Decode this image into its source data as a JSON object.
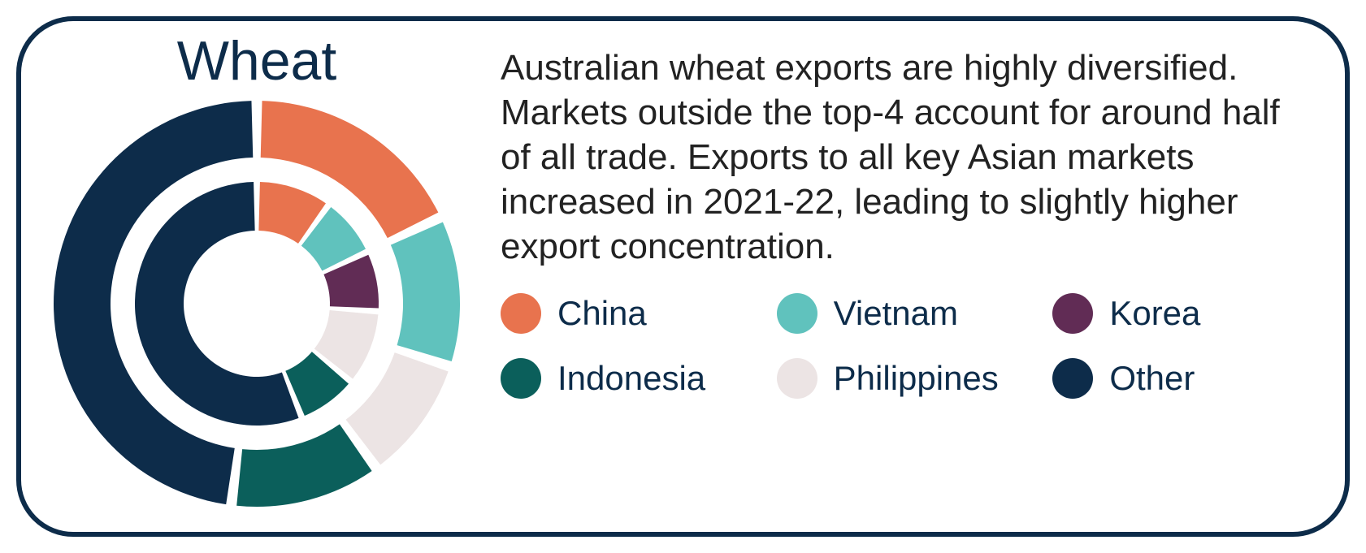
{
  "card": {
    "title": "Wheat",
    "description": "Australian wheat exports are highly diversified. Markets outside the top-4 account for around half of all trade. Exports to all key Asian markets increased in 2021-22, leading to slightly higher export concentration.",
    "border_color": "#0d2c4a",
    "border_width": 6,
    "border_radius": 70,
    "background_color": "#ffffff",
    "title_color": "#0d2c4a",
    "title_fontsize": 68,
    "desc_fontsize": 44,
    "desc_color": "#222222"
  },
  "chart": {
    "type": "nested-donut",
    "gap_color": "#ffffff",
    "gap_deg": 3,
    "rings": [
      {
        "name": "outer",
        "inner_radius": 180,
        "outer_radius": 250,
        "segments": [
          {
            "label": "China",
            "value": 18,
            "color": "#e8734e"
          },
          {
            "label": "Vietnam",
            "value": 12,
            "color": "#60c2bd"
          },
          {
            "label": "Philippines",
            "value": 10,
            "color": "#ece4e4"
          },
          {
            "label": "Indonesia",
            "value": 12,
            "color": "#0b5f5b"
          },
          {
            "label": "Other",
            "value": 48,
            "color": "#0d2c4a"
          }
        ]
      },
      {
        "name": "inner",
        "inner_radius": 90,
        "outer_radius": 150,
        "segments": [
          {
            "label": "China",
            "value": 10,
            "color": "#e8734e"
          },
          {
            "label": "Vietnam",
            "value": 8,
            "color": "#60c2bd"
          },
          {
            "label": "Korea",
            "value": 8,
            "color": "#612c55"
          },
          {
            "label": "Philippines",
            "value": 10,
            "color": "#ece4e4"
          },
          {
            "label": "Indonesia",
            "value": 8,
            "color": "#0b5f5b"
          },
          {
            "label": "Other",
            "value": 56,
            "color": "#0d2c4a"
          }
        ]
      }
    ]
  },
  "legend": {
    "label_fontsize": 42,
    "label_color": "#0d2c4a",
    "swatch_size": 50,
    "items": [
      {
        "label": "China",
        "color": "#e8734e"
      },
      {
        "label": "Vietnam",
        "color": "#60c2bd"
      },
      {
        "label": "Korea",
        "color": "#612c55"
      },
      {
        "label": "Indonesia",
        "color": "#0b5f5b"
      },
      {
        "label": "Philippines",
        "color": "#ece4e4"
      },
      {
        "label": "Other",
        "color": "#0d2c4a"
      }
    ]
  }
}
